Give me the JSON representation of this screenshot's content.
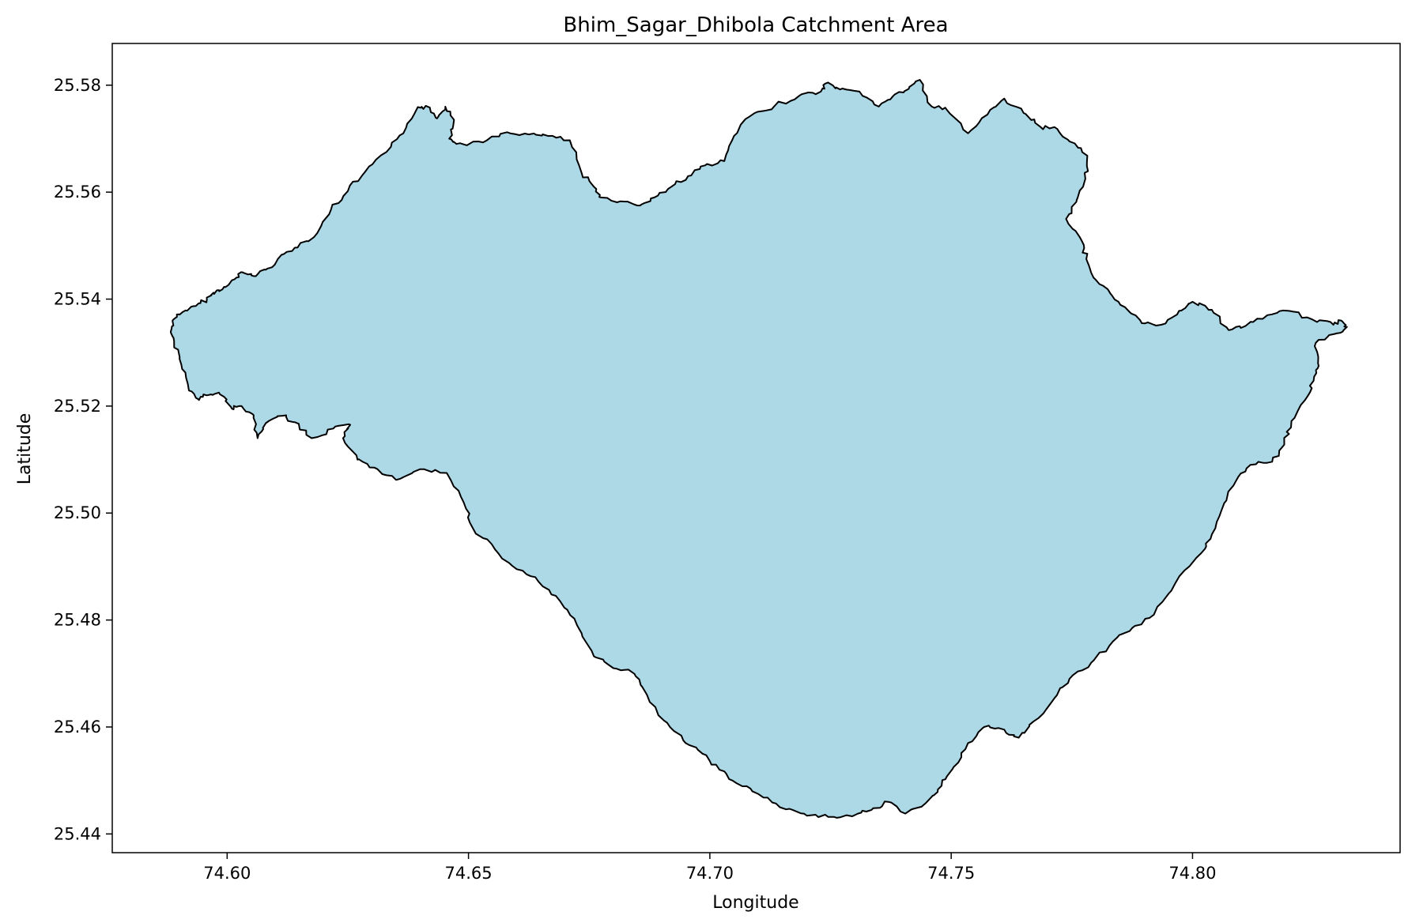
{
  "chart_data": {
    "type": "area",
    "title": "Bhim_Sagar_Dhibola Catchment Area",
    "xlabel": "Longitude",
    "ylabel": "Latitude",
    "xlim": [
      74.5762,
      74.843
    ],
    "ylim": [
      25.4365,
      25.5878
    ],
    "x_ticks": [
      "74.60",
      "74.65",
      "74.70",
      "74.75",
      "74.80"
    ],
    "y_ticks": [
      "25.44",
      "25.46",
      "25.48",
      "25.50",
      "25.52",
      "25.54",
      "25.56",
      "25.58"
    ],
    "grid": false,
    "legend": "none",
    "fill_color": "#add8e6",
    "edge_color": "#000000",
    "series": [
      {
        "boundary": [
          [
            74.5893,
            25.5365
          ],
          [
            74.5908,
            25.5376
          ],
          [
            74.5935,
            25.5387
          ],
          [
            74.5958,
            25.54
          ],
          [
            74.5972,
            25.5412
          ],
          [
            74.599,
            25.5418
          ],
          [
            74.6015,
            25.5437
          ],
          [
            74.6033,
            25.545
          ],
          [
            74.6055,
            25.5443
          ],
          [
            74.608,
            25.5455
          ],
          [
            74.6105,
            25.5475
          ],
          [
            74.614,
            25.5496
          ],
          [
            74.618,
            25.5516
          ],
          [
            74.6215,
            25.5567
          ],
          [
            74.625,
            25.5602
          ],
          [
            74.6285,
            25.5637
          ],
          [
            74.633,
            25.5675
          ],
          [
            74.6365,
            25.571
          ],
          [
            74.6395,
            25.5759
          ],
          [
            74.642,
            25.5758
          ],
          [
            74.6435,
            25.5738
          ],
          [
            74.6452,
            25.576
          ],
          [
            74.647,
            25.5735
          ],
          [
            74.646,
            25.57
          ],
          [
            74.6475,
            25.569
          ],
          [
            74.653,
            25.5693
          ],
          [
            74.658,
            25.5712
          ],
          [
            74.6625,
            25.5708
          ],
          [
            74.6665,
            25.5705
          ],
          [
            74.671,
            25.5697
          ],
          [
            74.6735,
            25.5634
          ],
          [
            74.676,
            25.561
          ],
          [
            74.6775,
            25.559
          ],
          [
            74.6815,
            25.5583
          ],
          [
            74.6855,
            25.5575
          ],
          [
            74.6885,
            25.559
          ],
          [
            74.692,
            25.561
          ],
          [
            74.6955,
            25.563
          ],
          [
            74.699,
            25.565
          ],
          [
            74.703,
            25.5658
          ],
          [
            74.705,
            25.5705
          ],
          [
            74.708,
            25.574
          ],
          [
            74.7135,
            25.5762
          ],
          [
            74.7185,
            25.578
          ],
          [
            74.723,
            25.5788
          ],
          [
            74.7245,
            25.5805
          ],
          [
            74.727,
            25.5792
          ],
          [
            74.731,
            25.5788
          ],
          [
            74.735,
            25.576
          ],
          [
            74.738,
            25.578
          ],
          [
            74.7412,
            25.5793
          ],
          [
            74.7435,
            25.581
          ],
          [
            74.746,
            25.576
          ],
          [
            74.749,
            25.5755
          ],
          [
            74.7535,
            25.571
          ],
          [
            74.7575,
            25.5745
          ],
          [
            74.761,
            25.5775
          ],
          [
            74.765,
            25.5748
          ],
          [
            74.7685,
            25.5722
          ],
          [
            74.772,
            25.5718
          ],
          [
            74.7745,
            25.5695
          ],
          [
            74.7782,
            25.5668
          ],
          [
            74.7778,
            25.5625
          ],
          [
            74.776,
            25.5585
          ],
          [
            74.7738,
            25.555
          ],
          [
            74.777,
            25.551
          ],
          [
            74.778,
            25.5475
          ],
          [
            74.7795,
            25.544
          ],
          [
            74.783,
            25.541
          ],
          [
            74.786,
            25.5385
          ],
          [
            74.7895,
            25.5355
          ],
          [
            74.7935,
            25.5352
          ],
          [
            74.7972,
            25.5378
          ],
          [
            74.8,
            25.5395
          ],
          [
            74.804,
            25.538
          ],
          [
            74.8075,
            25.5342
          ],
          [
            74.811,
            25.535
          ],
          [
            74.8155,
            25.537
          ],
          [
            74.82,
            25.5378
          ],
          [
            74.8248,
            25.5362
          ],
          [
            74.8292,
            25.5352
          ],
          [
            74.8308,
            25.536
          ],
          [
            74.832,
            25.5348
          ],
          [
            74.8295,
            25.5335
          ],
          [
            74.8255,
            25.5318
          ],
          [
            74.826,
            25.528
          ],
          [
            74.8252,
            25.5255
          ],
          [
            74.8238,
            25.5218
          ],
          [
            74.8205,
            25.5172
          ],
          [
            74.819,
            25.5128
          ],
          [
            74.8165,
            25.5096
          ],
          [
            74.812,
            25.509
          ],
          [
            74.809,
            25.506
          ],
          [
            74.806,
            25.5005
          ],
          [
            74.804,
            25.496
          ],
          [
            74.8018,
            25.4925
          ],
          [
            74.7965,
            25.487
          ],
          [
            74.792,
            25.481
          ],
          [
            74.7875,
            25.4785
          ],
          [
            74.7835,
            25.476
          ],
          [
            74.779,
            25.472
          ],
          [
            74.7745,
            25.469
          ],
          [
            74.7715,
            25.4655
          ],
          [
            74.767,
            25.461
          ],
          [
            74.764,
            25.458
          ],
          [
            74.761,
            25.4595
          ],
          [
            74.7568,
            25.46
          ],
          [
            74.7535,
            25.457
          ],
          [
            74.7505,
            25.4525
          ],
          [
            74.748,
            25.449
          ],
          [
            74.7455,
            25.4465
          ],
          [
            74.7405,
            25.4438
          ],
          [
            74.737,
            25.446
          ],
          [
            74.7335,
            25.4445
          ],
          [
            74.7295,
            25.4433
          ],
          [
            74.7245,
            25.4432
          ],
          [
            74.7195,
            25.4438
          ],
          [
            74.7145,
            25.445
          ],
          [
            74.71,
            25.4475
          ],
          [
            74.7055,
            25.4495
          ],
          [
            74.702,
            25.452
          ],
          [
            74.6985,
            25.455
          ],
          [
            74.6945,
            25.4575
          ],
          [
            74.6905,
            25.4612
          ],
          [
            74.686,
            25.4675
          ],
          [
            74.6835,
            25.4705
          ],
          [
            74.68,
            25.471
          ],
          [
            74.676,
            25.4732
          ],
          [
            74.6725,
            25.479
          ],
          [
            74.669,
            25.4835
          ],
          [
            74.6645,
            25.4872
          ],
          [
            74.66,
            25.4895
          ],
          [
            74.6555,
            25.4932
          ],
          [
            74.651,
            25.497
          ],
          [
            74.649,
            25.502
          ],
          [
            74.6455,
            25.5075
          ],
          [
            74.64,
            25.5082
          ],
          [
            74.635,
            25.5062
          ],
          [
            74.6305,
            25.5085
          ],
          [
            74.627,
            25.51
          ],
          [
            74.624,
            25.514
          ],
          [
            74.6255,
            25.5165
          ],
          [
            74.622,
            25.5158
          ],
          [
            74.6175,
            25.514
          ],
          [
            74.614,
            25.517
          ],
          [
            74.6115,
            25.5182
          ],
          [
            74.608,
            25.5168
          ],
          [
            74.6063,
            25.514
          ],
          [
            74.6055,
            25.5183
          ],
          [
            74.603,
            25.52
          ],
          [
            74.601,
            25.5195
          ],
          [
            74.5985,
            25.5222
          ],
          [
            74.5958,
            25.522
          ],
          [
            74.594,
            25.5213
          ],
          [
            74.592,
            25.5233
          ],
          [
            74.5905,
            25.5278
          ],
          [
            74.589,
            25.5322
          ],
          [
            74.5885,
            25.5345
          ]
        ]
      }
    ]
  }
}
